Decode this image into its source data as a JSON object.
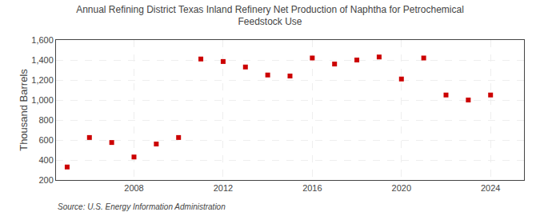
{
  "chart_data": {
    "type": "scatter",
    "title": "Annual Refining District Texas Inland Refinery Net Production of Naphtha for Petrochemical\nFeedstock Use",
    "ylabel": "Thousand Barrels",
    "annotations": [
      "Source: U.S. Energy Information Administration"
    ],
    "x": [
      2005,
      2006,
      2007,
      2008,
      2009,
      2010,
      2011,
      2012,
      2013,
      2014,
      2015,
      2016,
      2017,
      2018,
      2019,
      2020,
      2021,
      2022,
      2023,
      2024
    ],
    "values": [
      330,
      625,
      575,
      430,
      560,
      625,
      1410,
      1385,
      1330,
      1250,
      1240,
      1420,
      1360,
      1400,
      1430,
      1210,
      1420,
      1050,
      1000,
      1050
    ],
    "color": "#cc0000",
    "marker": "square",
    "xlim": [
      2004.5,
      2025.5
    ],
    "xticks": [
      2008,
      2012,
      2016,
      2020,
      2024
    ],
    "ylim": [
      200,
      1600
    ],
    "yticks": [
      200,
      400,
      600,
      800,
      {
        "value": 1000,
        "label": "1,000"
      },
      {
        "value": 1200,
        "label": "1,200"
      },
      {
        "value": 1400,
        "label": "1,400"
      },
      {
        "value": 1600,
        "label": "1,600"
      }
    ],
    "grid": true
  }
}
